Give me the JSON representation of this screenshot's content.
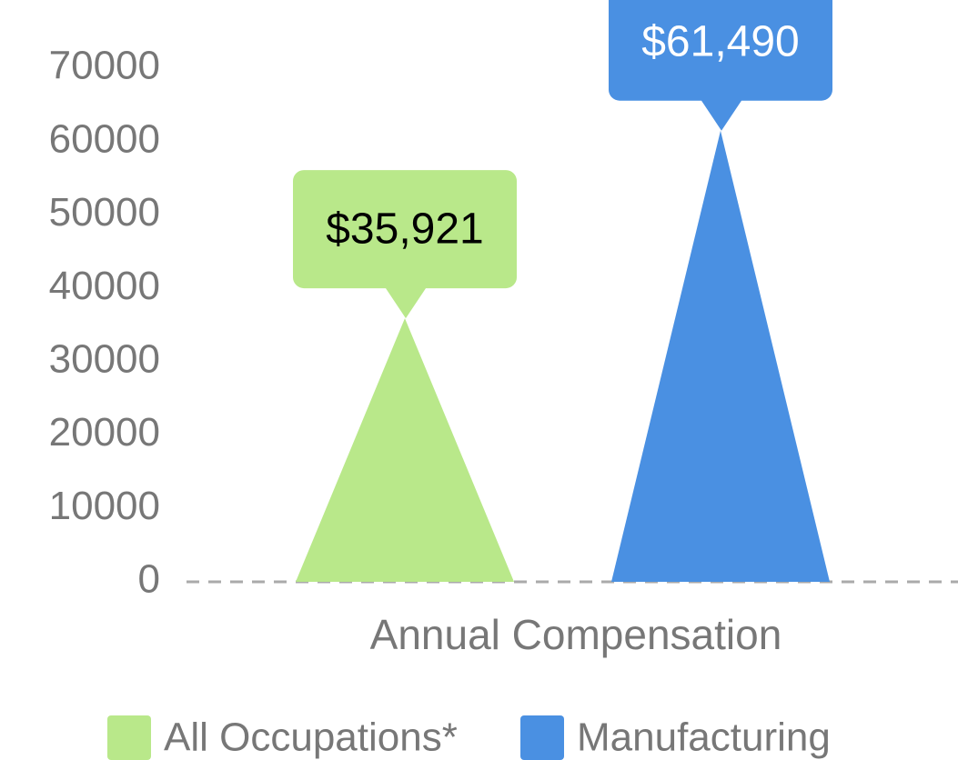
{
  "chart_data": {
    "type": "triangle_bar",
    "categories": [
      "Annual Compensation"
    ],
    "series": [
      {
        "name": "All Occupations*",
        "color": "#b9e88a",
        "values": [
          35921
        ],
        "value_labels": [
          "$35,921"
        ],
        "label_color": "#000000"
      },
      {
        "name": "Manufacturing",
        "color": "#4a90e2",
        "values": [
          61490
        ],
        "value_labels": [
          "$61,490"
        ],
        "label_color": "#ffffff"
      }
    ],
    "ylim": [
      0,
      70000
    ],
    "yticks": [
      0,
      10000,
      20000,
      30000,
      40000,
      50000,
      60000,
      70000
    ],
    "legend": "bottom"
  }
}
